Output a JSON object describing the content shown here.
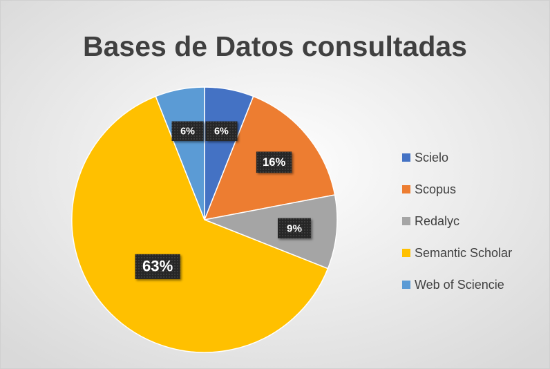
{
  "chart_data": {
    "type": "pie",
    "title": "Bases de Datos consultadas",
    "categories": [
      "Scielo",
      "Scopus",
      "Redalyc",
      "Semantic Scholar",
      "Web of Sciencie"
    ],
    "values": [
      6,
      16,
      9,
      63,
      6
    ],
    "value_labels": [
      "6%",
      "16%",
      "9%",
      "63%",
      "6%"
    ],
    "colors": [
      "#4472c4",
      "#ed7d31",
      "#a5a5a5",
      "#ffc000",
      "#5b9bd5"
    ],
    "legend": "right"
  }
}
